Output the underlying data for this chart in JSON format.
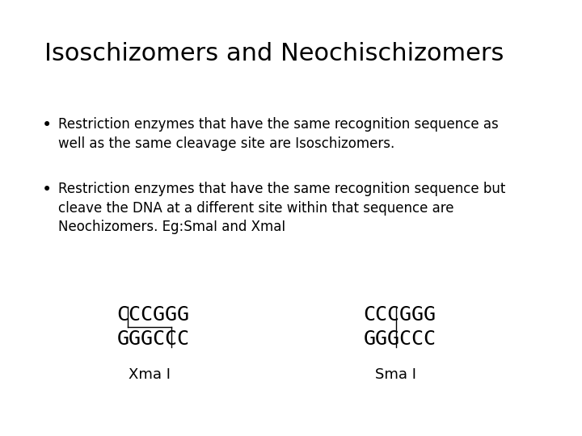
{
  "title": "Isoschizomers and Neochischizomers",
  "bullet1_line1": "Restriction enzymes that have the same recognition sequence as",
  "bullet1_line2": "well as the same cleavage site are Isoschizomers.",
  "bullet2_line1": "Restriction enzymes that have the same recognition sequence but",
  "bullet2_line2": "cleave the DNA at a different site within that sequence are",
  "bullet2_line3": "Neochizomers. Eg:SmaI and XmaI",
  "xma_top": "CCCGGG",
  "xma_bottom": "GGGCCC",
  "xma_label": "Xma I",
  "sma_top": "CCCGGG",
  "sma_bottom": "GGGCCC",
  "sma_label": "Sma I",
  "bg_color": "#ffffff",
  "text_color": "#000000",
  "title_fontsize": 22,
  "body_fontsize": 12,
  "mono_fontsize": 18
}
